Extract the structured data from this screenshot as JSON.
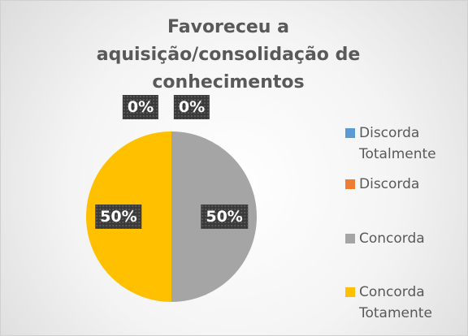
{
  "chart_data": {
    "type": "pie",
    "title": "Favoreceu a aquisição/consolidação de conhecimentos",
    "categories": [
      "Discorda Totalmente",
      "Discorda",
      "Concorda",
      "Concorda Totamente"
    ],
    "values": [
      0,
      0,
      50,
      50
    ],
    "value_labels": [
      "0%",
      "0%",
      "50%",
      "50%"
    ],
    "colors": [
      "#5b9bd5",
      "#ed7d31",
      "#a5a5a5",
      "#ffc000"
    ],
    "legend": "right"
  }
}
